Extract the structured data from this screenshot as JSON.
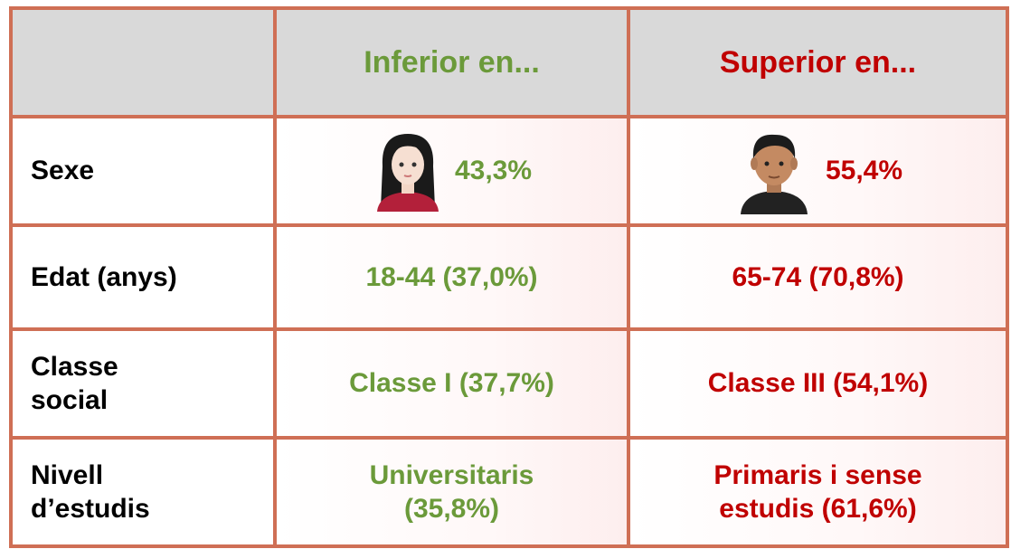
{
  "header": {
    "col1": "Inferior en...",
    "col2": "Superior en..."
  },
  "rows": [
    [
      "Sexe",
      "43,3%",
      "55,4%"
    ],
    [
      "Edat (anys)",
      "18-44 (37,0%)",
      "65-74 (70,8%)"
    ],
    [
      "Classe\nsocial",
      "Classe I (37,7%)",
      "Classe III (54,1%)"
    ],
    [
      "Nivell\nd’estudis",
      "Universitaris\n(35,8%)",
      "Primaris i sense\nestudis (61,6%)"
    ]
  ]
}
